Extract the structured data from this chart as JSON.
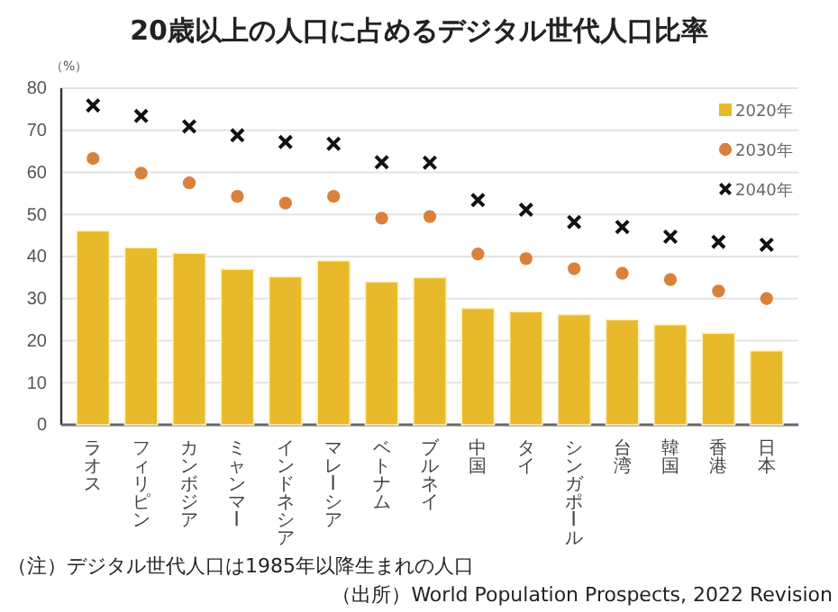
{
  "chart_data": {
    "type": "bar",
    "title": "20歳以上の人口に占めるデジタル世代人口比率",
    "ylabel": "（%）",
    "categories": [
      "ラオス",
      "フィリピン",
      "カンボジア",
      "ミャンマー",
      "インドネシア",
      "マレーシア",
      "ベトナム",
      "ブルネイ",
      "中国",
      "タイ",
      "シンガポール",
      "台湾",
      "韓国",
      "香港",
      "日本"
    ],
    "series": [
      {
        "name": "2020年",
        "color": "#e9b92c",
        "values": [
          46.1,
          42.1,
          40.8,
          37.0,
          35.2,
          39.0,
          34.0,
          35.0,
          27.7,
          26.9,
          26.2,
          25.0,
          23.8,
          21.8,
          17.6
        ]
      },
      {
        "name": "2030年",
        "type": "scatter",
        "marker": "circle",
        "color": "#d9813b",
        "values": [
          63.3,
          59.8,
          57.5,
          54.3,
          52.7,
          54.3,
          49.1,
          49.5,
          40.6,
          39.5,
          37.1,
          36.0,
          34.5,
          31.8,
          30.0
        ]
      },
      {
        "name": "2040年",
        "type": "scatter",
        "marker": "cross",
        "color": "#111111",
        "values": [
          75.9,
          73.4,
          70.9,
          68.8,
          67.2,
          66.8,
          62.4,
          62.3,
          53.4,
          51.1,
          48.2,
          47.0,
          44.7,
          43.5,
          42.8
        ]
      }
    ],
    "ylim": [
      0,
      80
    ],
    "yticks": [
      0,
      10,
      20,
      30,
      40,
      50,
      60,
      70,
      80
    ],
    "grid": "y",
    "legend": "top right",
    "annotations": [
      "（注）デジタル世代人口は1985年以降生まれの人口",
      "（出所）World Population Prospects, 2022 Revision"
    ]
  }
}
